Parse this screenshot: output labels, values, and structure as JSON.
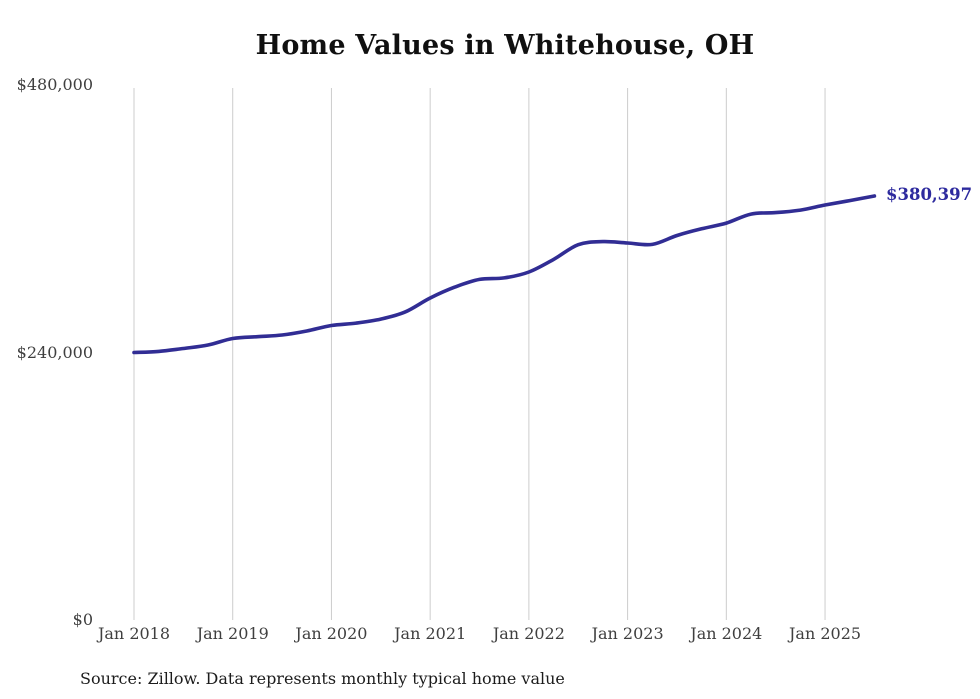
{
  "chart_data": {
    "type": "line",
    "title": "Home Values in Whitehouse, OH",
    "source_note": "Source: Zillow. Data represents monthly typical home value",
    "end_label": "$380,397",
    "end_value": 380397,
    "line_color": "#312d94",
    "end_label_color": "#2d2a9e",
    "grid_color": "#cccccc",
    "grid": true,
    "legend_position": "none",
    "ylabel": "",
    "xlabel": "",
    "ylim": [
      0,
      480000
    ],
    "yticks": [
      {
        "label": "$480,000",
        "value": 480000
      },
      {
        "label": "$240,000",
        "value": 240000
      },
      {
        "label": "$0",
        "value": 0
      }
    ],
    "xticks": [
      "Jan 2018",
      "Jan 2019",
      "Jan 2020",
      "Jan 2021",
      "Jan 2022",
      "Jan 2023",
      "Jan 2024",
      "Jan 2025"
    ],
    "xtick_months": [
      0,
      12,
      24,
      36,
      48,
      60,
      72,
      84
    ],
    "series": [
      {
        "name": "Typical home value",
        "points": [
          {
            "date": "Jan 2018",
            "month": 0,
            "value": 240000
          },
          {
            "date": "Apr 2018",
            "month": 3,
            "value": 241000
          },
          {
            "date": "Jul 2018",
            "month": 6,
            "value": 243600
          },
          {
            "date": "Oct 2018",
            "month": 9,
            "value": 246700
          },
          {
            "date": "Jan 2019",
            "month": 12,
            "value": 252600
          },
          {
            "date": "Apr 2019",
            "month": 15,
            "value": 254200
          },
          {
            "date": "Jul 2019",
            "month": 18,
            "value": 255700
          },
          {
            "date": "Oct 2019",
            "month": 21,
            "value": 259300
          },
          {
            "date": "Jan 2020",
            "month": 24,
            "value": 264200
          },
          {
            "date": "Apr 2020",
            "month": 27,
            "value": 266400
          },
          {
            "date": "Jul 2020",
            "month": 30,
            "value": 270000
          },
          {
            "date": "Oct 2020",
            "month": 33,
            "value": 276500
          },
          {
            "date": "Jan 2021",
            "month": 36,
            "value": 288900
          },
          {
            "date": "Apr 2021",
            "month": 39,
            "value": 298700
          },
          {
            "date": "Jul 2021",
            "month": 42,
            "value": 305600
          },
          {
            "date": "Oct 2021",
            "month": 45,
            "value": 306900
          },
          {
            "date": "Jan 2022",
            "month": 48,
            "value": 312200
          },
          {
            "date": "Apr 2022",
            "month": 51,
            "value": 323500
          },
          {
            "date": "Jul 2022",
            "month": 54,
            "value": 336700
          },
          {
            "date": "Oct 2022",
            "month": 57,
            "value": 339500
          },
          {
            "date": "Jan 2023",
            "month": 60,
            "value": 338200
          },
          {
            "date": "Apr 2023",
            "month": 63,
            "value": 337000
          },
          {
            "date": "Jul 2023",
            "month": 66,
            "value": 345000
          },
          {
            "date": "Oct 2023",
            "month": 69,
            "value": 351000
          },
          {
            "date": "Jan 2024",
            "month": 72,
            "value": 356100
          },
          {
            "date": "Apr 2024",
            "month": 75,
            "value": 364200
          },
          {
            "date": "Jul 2024",
            "month": 78,
            "value": 365500
          },
          {
            "date": "Oct 2024",
            "month": 81,
            "value": 367800
          },
          {
            "date": "Jan 2025",
            "month": 84,
            "value": 372300
          },
          {
            "date": "Apr 2025",
            "month": 87,
            "value": 376300
          },
          {
            "date": "Jul 2025",
            "month": 90,
            "value": 380397
          }
        ]
      }
    ]
  }
}
